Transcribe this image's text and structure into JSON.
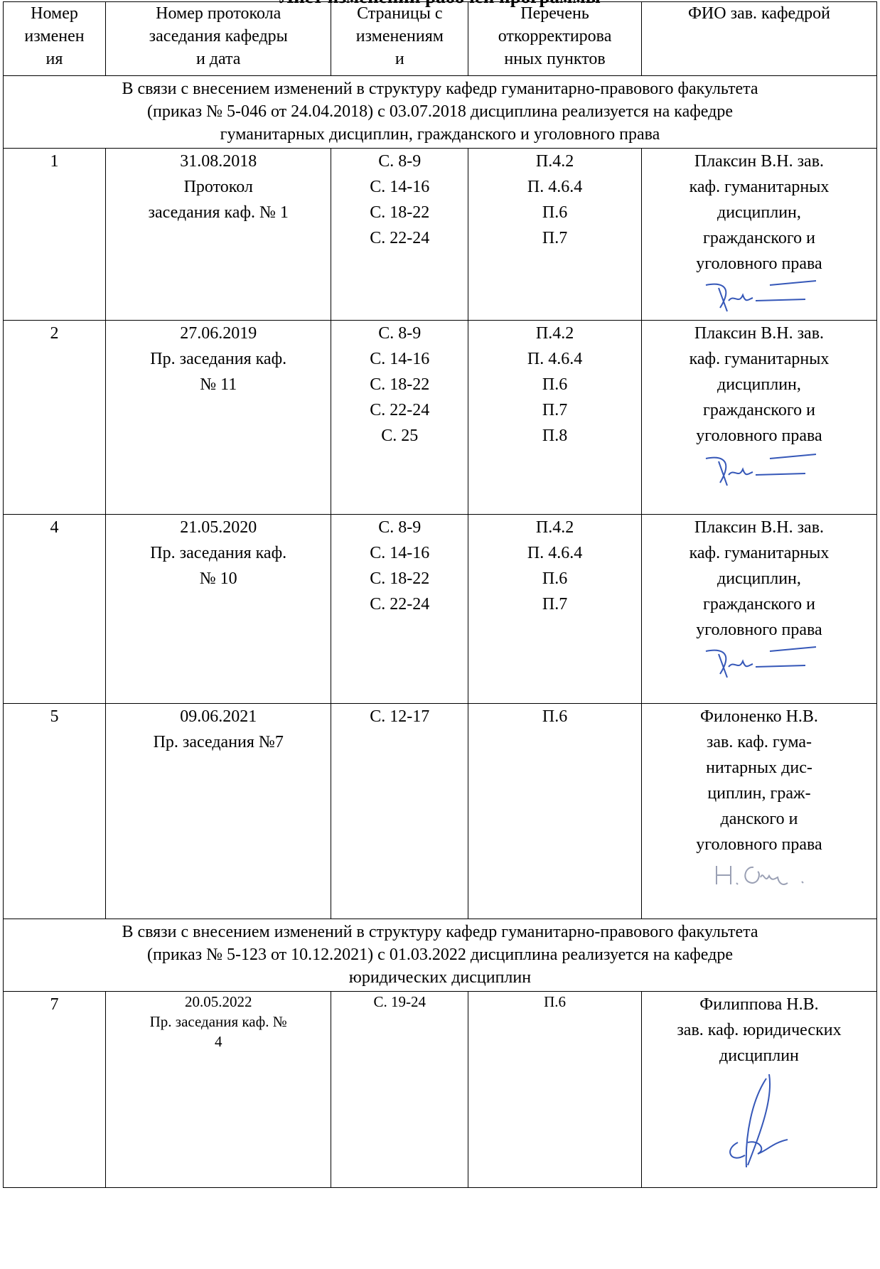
{
  "title": "Лист изменений рабочей программы",
  "headers": [
    "Номер\nизменен\nия",
    "Номер протокола\nзаседания кафедры\nи дата",
    "Страницы с\nизменениям\nи",
    "Перечень\nоткорректирова\nнных пунктов",
    "ФИО зав. кафедрой"
  ],
  "notices": [
    "В связи с внесением  изменений в структуру кафедр гуманитарно-правового факультета\n(приказ № 5-046 от 24.04.2018) с 03.07.2018 дисциплина реализуется на кафедре\nгуманитарных дисциплин, гражданского и уголовного права",
    "В связи с внесением  изменений в структуру кафедр гуманитарно-правового факультета\n(приказ № 5-123 от 10.12.2021) с 01.03.2022 дисциплина реализуется на кафедре\nюридических дисциплин"
  ],
  "rows": [
    {
      "number": "1",
      "protocol": "31.08.2018\nПротокол\nзаседания каф. № 1",
      "pages": "С. 8-9\nС. 14-16\nС. 18-22\nС. 22-24",
      "items": "П.4.2\nП. 4.6.4\nП.6\nП.7",
      "head": "Плаксин В.Н. зав.\nкаф. гуманитарных\nдисциплин,\nгражданского и\nуголовного права"
    },
    {
      "number": "2",
      "protocol": "27.06.2019\nПр. заседания каф.\n№ 11",
      "pages": "С. 8-9\nС. 14-16\nС. 18-22\nС. 22-24\nС. 25",
      "items": "П.4.2\nП. 4.6.4\nП.6\nП.7\nП.8",
      "head": "Плаксин В.Н. зав.\nкаф. гуманитарных\nдисциплин,\nгражданского и\nуголовного права"
    },
    {
      "number": "4",
      "protocol": "21.05.2020\nПр. заседания каф.\n№ 10",
      "pages": "С. 8-9\nС. 14-16\nС. 18-22\nС. 22-24",
      "items": "П.4.2\nП. 4.6.4\nП.6\nП.7",
      "head": "Плаксин В.Н. зав.\nкаф. гуманитарных\nдисциплин,\nгражданского и\nуголовного права"
    },
    {
      "number": "5",
      "protocol": "09.06.2021\nПр. заседания №7",
      "pages": "С. 12-17",
      "items": "П.6",
      "head": "Филоненко Н.В.\nзав. каф. гума-\nнитарных дис-\nциплин, граж-\nданского и\nуголовного права"
    },
    {
      "number": "7",
      "protocol": "20.05.2022\nПр. заседания каф. №\n4",
      "pages": "С. 19-24",
      "items": "П.6",
      "head": "Филиппова Н.В.\nзав. каф. юридических\nдисциплин"
    }
  ],
  "colors": {
    "signature_ink": "#3557b8",
    "signature_pencil": "#9aa0b4"
  }
}
